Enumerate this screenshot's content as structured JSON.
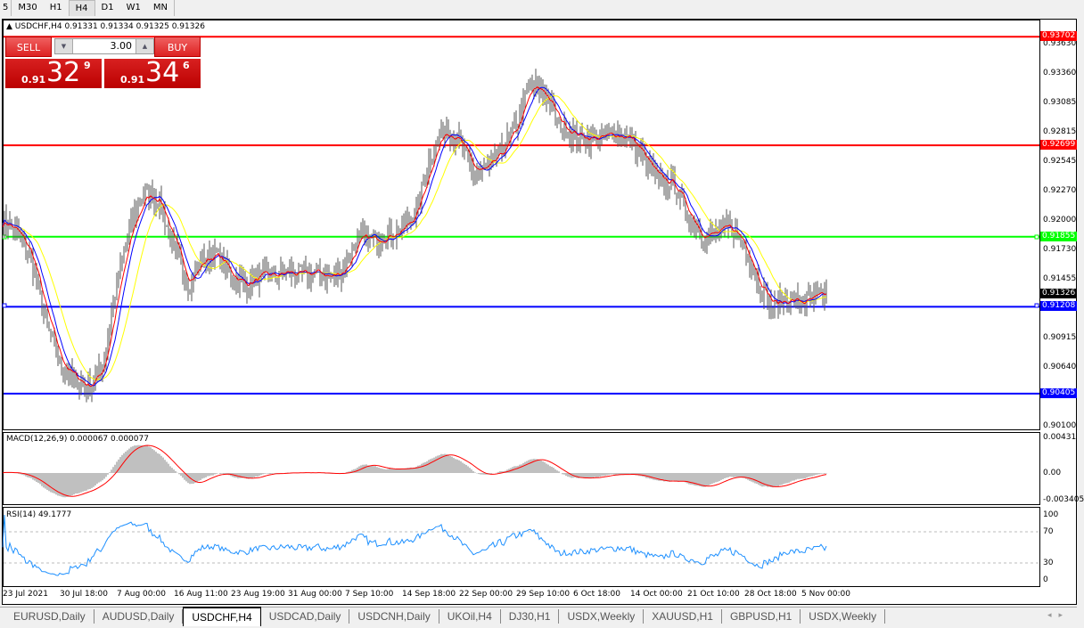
{
  "toolbar": {
    "periods": [
      "5",
      "M30",
      "H1",
      "H4",
      "D1",
      "W1",
      "MN"
    ],
    "active": "H4"
  },
  "chart": {
    "symbol_header": "USDCHF,H4  0.91331 0.91334 0.91325 0.91326",
    "price_axis": [
      "0.93630",
      "0.93360",
      "0.93085",
      "0.92815",
      "0.92545",
      "0.92270",
      "0.92000",
      "0.91730",
      "0.91455",
      "0.90915",
      "0.90640",
      "0.90100"
    ],
    "current_price": "0.91326",
    "horizontal_lines": [
      {
        "price": "0.93702",
        "color": "#ff0000"
      },
      {
        "price": "0.92699",
        "color": "#ff0000"
      },
      {
        "price": "0.91855",
        "color": "#00ff00"
      },
      {
        "price": "0.91208",
        "color": "#0000ff"
      },
      {
        "price": "0.90405",
        "color": "#0000ff"
      }
    ],
    "time_axis": [
      "23 Jul 2021",
      "30 Jul 18:00",
      "7 Aug 00:00",
      "16 Aug 11:00",
      "23 Aug 19:00",
      "31 Aug 00:00",
      "7 Sep 10:00",
      "14 Sep 18:00",
      "22 Sep 00:00",
      "29 Sep 10:00",
      "6 Oct 18:00",
      "14 Oct 00:00",
      "21 Oct 10:00",
      "28 Oct 18:00",
      "5 Nov 00:00"
    ],
    "close_path": [
      0.92025,
      0.91885,
      0.91655,
      0.91079,
      0.90667,
      0.90544,
      0.90461,
      0.90667,
      0.91408,
      0.91984,
      0.92272,
      0.9219,
      0.91737,
      0.91408,
      0.91655,
      0.91696,
      0.9149,
      0.91408,
      0.9149,
      0.9149,
      0.91531,
      0.9149,
      0.91531,
      0.91474,
      0.91572,
      0.91861,
      0.91819,
      0.91885,
      0.91918,
      0.92107,
      0.92601,
      0.92889,
      0.92725,
      0.92437,
      0.92478,
      0.92642,
      0.92889,
      0.9326,
      0.93177,
      0.92889,
      0.92807,
      0.92766,
      0.92766,
      0.92807,
      0.92766,
      0.9256,
      0.92354,
      0.92354,
      0.92066,
      0.91861,
      0.91885,
      0.91943,
      0.91778,
      0.91408,
      0.91202,
      0.91284,
      0.91243,
      0.91284,
      0.91326
    ],
    "ma_colors": {
      "fast": "#ff0000",
      "mid": "#0000ff",
      "slow": "#ffff00"
    },
    "bar_color": "#555555"
  },
  "trade_panel": {
    "sell_label": "SELL",
    "buy_label": "BUY",
    "volume": "3.00",
    "sell_price": {
      "small": "0.91",
      "big": "32",
      "pip": "9"
    },
    "buy_price": {
      "small": "0.91",
      "big": "34",
      "pip": "6"
    }
  },
  "macd": {
    "header": "MACD(12,26,9) 0.000067 0.000077",
    "axis": [
      "0.00431",
      "0.00",
      "-0.003405"
    ],
    "hist_color": "#c0c0c0",
    "signal_color": "#ff0000"
  },
  "rsi": {
    "header": "RSI(14) 49.1777",
    "axis": [
      "100",
      "70",
      "30",
      "0"
    ],
    "line_color": "#1e90ff"
  },
  "tabs": [
    "EURUSD,Daily",
    "AUDUSD,Daily",
    "USDCHF,H4",
    "USDCAD,Daily",
    "USDCNH,Daily",
    "UKOil,H4",
    "DJ30,H1",
    "USDX,Weekly",
    "XAUUSD,H1",
    "GBPUSD,H1",
    "USDX,Weekly"
  ],
  "active_tab": "USDCHF,H4"
}
